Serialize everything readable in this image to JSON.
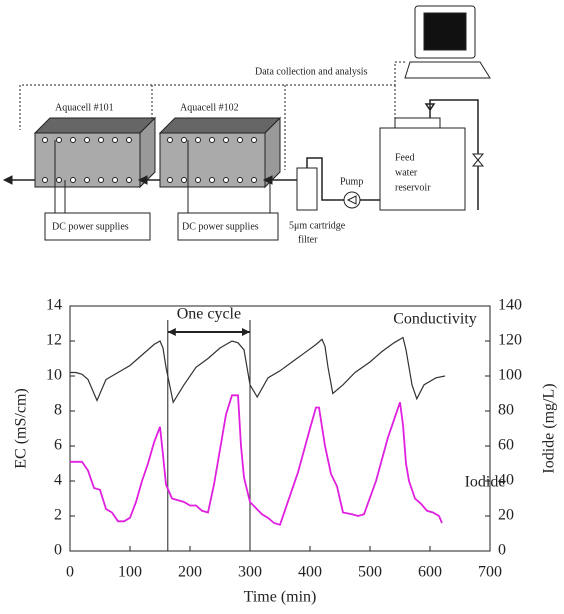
{
  "diagram": {
    "data_label": "Data collection and analysis",
    "cell_1": "Aquacell #101",
    "cell_2": "Aquacell #102",
    "power_1": "DC power supplies",
    "power_2": "DC power supplies",
    "pump": "Pump",
    "filter_label": [
      "5μm cartridge",
      "filter"
    ],
    "reservoir_label": [
      "Feed",
      "water",
      "reservoir"
    ]
  },
  "chart_data": {
    "type": "line",
    "x_label": "Time (min)",
    "y_label": "EC (mS/cm)",
    "y2_label": "Iodide (mg/L)",
    "annotation": "One cycle",
    "cycle_bounds": [
      163,
      300
    ],
    "xlim": [
      0,
      700
    ],
    "xticks": [
      0,
      100,
      200,
      300,
      400,
      500,
      600,
      700
    ],
    "ylim": [
      0,
      14
    ],
    "yticks": [
      0,
      2,
      4,
      6,
      8,
      10,
      12,
      14
    ],
    "y2lim": [
      0,
      140
    ],
    "y2ticks": [
      0,
      20,
      40,
      60,
      80,
      100,
      120,
      140
    ],
    "series": [
      {
        "name": "Conductivity",
        "color": "#333333",
        "axis": "y",
        "x": [
          0,
          10,
          20,
          30,
          45,
          60,
          80,
          100,
          120,
          140,
          150,
          155,
          160,
          172,
          190,
          210,
          230,
          250,
          270,
          280,
          290,
          300,
          312,
          330,
          350,
          370,
          390,
          410,
          420,
          425,
          430,
          438,
          455,
          475,
          500,
          520,
          540,
          555,
          560,
          570,
          578,
          590,
          610,
          625
        ],
        "values": [
          10.2,
          10.2,
          10.1,
          9.8,
          8.6,
          9.8,
          10.2,
          10.6,
          11.2,
          11.8,
          12.0,
          11.6,
          10.5,
          8.5,
          9.5,
          10.5,
          11.0,
          11.6,
          12.0,
          11.9,
          11.5,
          9.5,
          8.8,
          9.9,
          10.3,
          10.8,
          11.3,
          11.8,
          12.1,
          11.7,
          10.5,
          9.0,
          9.5,
          10.2,
          10.8,
          11.4,
          11.9,
          12.2,
          11.5,
          9.5,
          8.7,
          9.5,
          9.9,
          10.0
        ]
      },
      {
        "name": "Iodide",
        "color": "#e020e0",
        "axis": "y2",
        "x": [
          0,
          20,
          30,
          40,
          50,
          60,
          70,
          80,
          90,
          100,
          110,
          120,
          130,
          140,
          150,
          155,
          160,
          170,
          190,
          200,
          210,
          220,
          230,
          240,
          250,
          260,
          270,
          280,
          285,
          290,
          300,
          320,
          330,
          340,
          350,
          360,
          380,
          400,
          410,
          415,
          425,
          435,
          445,
          455,
          470,
          480,
          490,
          510,
          530,
          550,
          555,
          560,
          565,
          575,
          585,
          595,
          605,
          615,
          620
        ],
        "values": [
          51,
          51,
          46,
          36,
          35,
          24,
          22,
          17,
          17,
          19,
          28,
          40,
          50,
          62,
          71,
          55,
          38,
          30,
          28,
          26,
          26,
          23,
          22,
          38,
          58,
          78,
          89,
          89,
          60,
          42,
          28,
          21,
          19,
          16,
          15,
          25,
          45,
          70,
          82,
          82,
          60,
          44,
          37,
          22,
          21,
          20,
          21,
          40,
          65,
          85,
          72,
          50,
          40,
          30,
          27,
          23,
          22,
          20,
          16
        ]
      }
    ]
  }
}
